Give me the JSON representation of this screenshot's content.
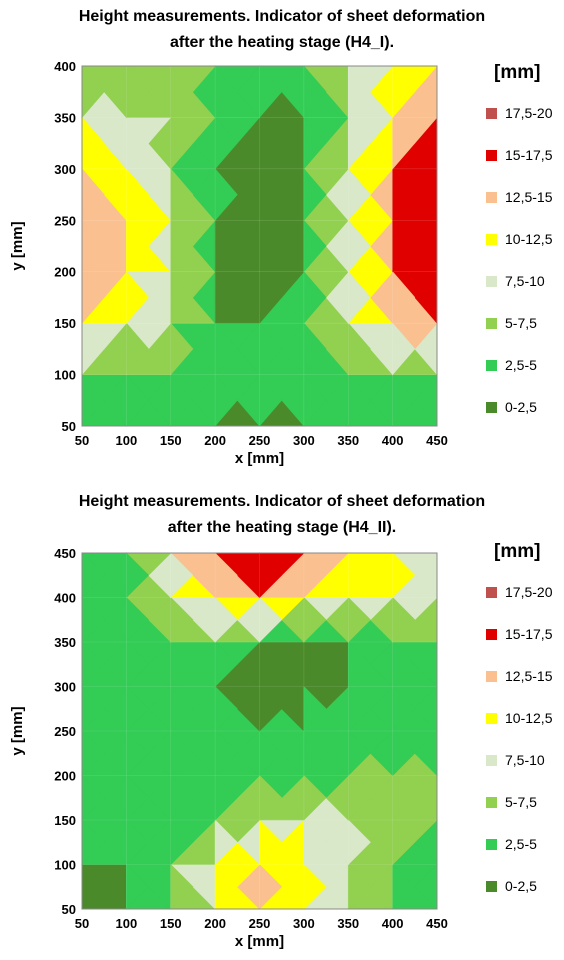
{
  "charts": [
    {
      "title_line1": "Height measurements. Indicator of sheet deformation",
      "title_line2": "after the heating stage (H4_I).",
      "legend_title": "[mm]",
      "xlabel": "x [mm]",
      "ylabel": "y [mm]"
    },
    {
      "title_line1": "Height measurements. Indicator of sheet deformation",
      "title_line2": "after the heating stage (H4_II).",
      "legend_title": "[mm]",
      "xlabel": "x [mm]",
      "ylabel": "y [mm]"
    }
  ],
  "chart_data": [
    {
      "type": "heatmap",
      "title": "Height measurements. Indicator of sheet deformation after the heating stage (H4_I).",
      "xlabel": "x [mm]",
      "ylabel": "y [mm]",
      "xlim": [
        50,
        450
      ],
      "ylim": [
        50,
        400
      ],
      "x_ticks": [
        50,
        100,
        150,
        200,
        250,
        300,
        350,
        400,
        450
      ],
      "y_ticks": [
        50,
        100,
        150,
        200,
        250,
        300,
        350,
        400
      ],
      "legend_title": "[mm]",
      "bands": [
        {
          "label": "17,5-20",
          "color": "#c0504d"
        },
        {
          "label": "15-17,5",
          "color": "#e00000"
        },
        {
          "label": "12,5-15",
          "color": "#fac090"
        },
        {
          "label": "10-12,5",
          "color": "#ffff00"
        },
        {
          "label": "7,5-10",
          "color": "#d8e8c8"
        },
        {
          "label": "5-7,5",
          "color": "#92d050"
        },
        {
          "label": "2,5-5",
          "color": "#33cc55"
        },
        {
          "label": "0-2,5",
          "color": "#4a8a2a"
        }
      ],
      "grid_x": [
        50,
        100,
        150,
        200,
        250,
        300,
        350,
        400,
        450
      ],
      "grid_y": [
        50,
        100,
        150,
        200,
        250,
        300,
        350,
        400
      ],
      "z": [
        [
          4,
          3,
          3,
          2,
          2,
          2,
          3,
          3,
          4
        ],
        [
          5,
          4,
          5,
          3,
          3,
          3,
          5,
          4,
          3
        ],
        [
          12,
          10,
          7,
          3,
          2,
          4,
          8,
          13,
          16
        ],
        [
          15,
          12,
          8,
          2,
          1,
          3,
          9,
          14,
          17
        ],
        [
          15,
          13,
          8,
          3,
          1,
          2,
          9,
          15,
          18
        ],
        [
          12,
          11,
          6,
          3,
          1,
          2,
          9,
          14,
          17
        ],
        [
          9,
          8,
          7,
          4,
          2,
          1,
          7,
          12,
          15
        ],
        [
          5,
          6,
          5,
          5,
          4,
          4,
          8,
          10,
          13
        ]
      ]
    },
    {
      "type": "heatmap",
      "title": "Height measurements. Indicator of sheet deformation after the heating stage (H4_II).",
      "xlabel": "x [mm]",
      "ylabel": "y [mm]",
      "xlim": [
        50,
        450
      ],
      "ylim": [
        50,
        450
      ],
      "x_ticks": [
        50,
        100,
        150,
        200,
        250,
        300,
        350,
        400,
        450
      ],
      "y_ticks": [
        50,
        100,
        150,
        200,
        250,
        300,
        350,
        400,
        450
      ],
      "legend_title": "[mm]",
      "bands": [
        {
          "label": "17,5-20",
          "color": "#c0504d"
        },
        {
          "label": "15-17,5",
          "color": "#e00000"
        },
        {
          "label": "12,5-15",
          "color": "#fac090"
        },
        {
          "label": "10-12,5",
          "color": "#ffff00"
        },
        {
          "label": "7,5-10",
          "color": "#d8e8c8"
        },
        {
          "label": "5-7,5",
          "color": "#92d050"
        },
        {
          "label": "2,5-5",
          "color": "#33cc55"
        },
        {
          "label": "0-2,5",
          "color": "#4a8a2a"
        }
      ],
      "grid_x": [
        50,
        100,
        150,
        200,
        250,
        300,
        350,
        400,
        450
      ],
      "grid_y": [
        50,
        100,
        150,
        200,
        250,
        300,
        350,
        400,
        450
      ],
      "z": [
        [
          1,
          2,
          4,
          8,
          14,
          10,
          7,
          4,
          3
        ],
        [
          2,
          3,
          5,
          11,
          13,
          12,
          8,
          5,
          4
        ],
        [
          3,
          4,
          3,
          5,
          7,
          8,
          9,
          6,
          5
        ],
        [
          2,
          3,
          4,
          3,
          4,
          2,
          5,
          6,
          5
        ],
        [
          5,
          4,
          3,
          5,
          3,
          4,
          3,
          2,
          4
        ],
        [
          4,
          3,
          4,
          3,
          1,
          1,
          2,
          3,
          5
        ],
        [
          3,
          4,
          3,
          5,
          3,
          2,
          3,
          4,
          5
        ],
        [
          4,
          5,
          8,
          12,
          13,
          12,
          9,
          11,
          9
        ],
        [
          2,
          3,
          9,
          17,
          18,
          16,
          14,
          11,
          7
        ]
      ]
    }
  ]
}
